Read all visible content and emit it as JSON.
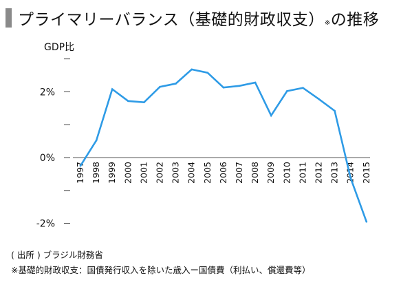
{
  "header": {
    "title": "プライマリーバランス（基礎的財政収支）",
    "title_note": "※",
    "title_suffix": "の推移"
  },
  "chart_data": {
    "type": "line",
    "title": "プライマリーバランス（基礎的財政収支）※の推移",
    "ylabel": "GDP比",
    "xlabel": "",
    "ylim": [
      -2.5,
      3.3
    ],
    "yticks": [
      {
        "value": 3,
        "label": ""
      },
      {
        "value": 2,
        "label": "2%"
      },
      {
        "value": 1,
        "label": ""
      },
      {
        "value": 0,
        "label": "0%"
      },
      {
        "value": -1,
        "label": ""
      },
      {
        "value": -2,
        "label": "-2%"
      }
    ],
    "grid": false,
    "line_color": "#2e9be6",
    "x": [
      "1997",
      "1998",
      "1999",
      "2000",
      "2001",
      "2002",
      "2003",
      "2004",
      "2005",
      "2006",
      "2007",
      "2008",
      "2009",
      "2010",
      "2011",
      "2012",
      "2013",
      "2014",
      "2015"
    ],
    "series": [
      {
        "values": [
          -0.25,
          0.52,
          2.08,
          1.72,
          1.68,
          2.15,
          2.25,
          2.68,
          2.58,
          2.13,
          2.18,
          2.28,
          1.28,
          2.02,
          2.12,
          1.78,
          1.42,
          -0.62,
          -1.95
        ]
      }
    ]
  },
  "footer": {
    "source": "( 出所 ) ブラジル財務省",
    "note": "※基礎的財政収支：国債発行収入を除いた歳入ー国債費（利払い、償還費等）"
  }
}
